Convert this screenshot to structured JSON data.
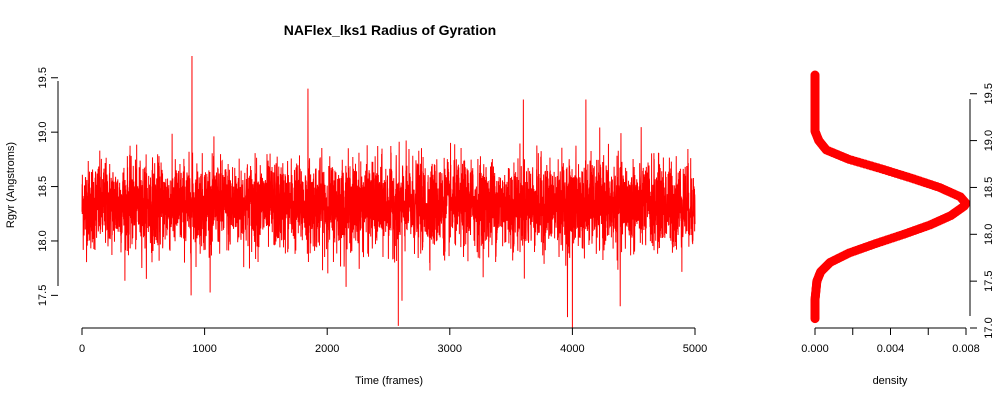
{
  "chart_data": [
    {
      "type": "line",
      "title": "NAFlex_lks1 Radius of Gyration",
      "xlabel": "Time (frames)",
      "ylabel": "Rgyr (Angstroms)",
      "xlim": [
        0,
        5000
      ],
      "ylim": [
        17.2,
        19.7
      ],
      "x_ticks": [
        0,
        1000,
        2000,
        3000,
        4000,
        5000
      ],
      "y_ticks": [
        17.5,
        18.0,
        18.5,
        19.0,
        19.5
      ],
      "x_tick_labels": [
        "0",
        "1000",
        "2000",
        "3000",
        "4000",
        "5000"
      ],
      "y_tick_labels": [
        "17.5",
        "18.0",
        "18.5",
        "19.0",
        "19.5"
      ],
      "grid": false,
      "series": [
        {
          "color": "#ff0000",
          "n_frames": 5000,
          "mean": 18.33,
          "sd": 0.2,
          "min": 17.2,
          "max": 19.7,
          "peaks": [
            {
              "x": 897,
              "y": 19.7
            },
            {
              "x": 1843,
              "y": 19.4
            },
            {
              "x": 3600,
              "y": 19.3
            },
            {
              "x": 4110,
              "y": 19.3
            },
            {
              "x": 2580,
              "y": 17.22
            },
            {
              "x": 4000,
              "y": 17.2
            },
            {
              "x": 3960,
              "y": 17.3
            },
            {
              "x": 4390,
              "y": 17.4
            },
            {
              "x": 890,
              "y": 17.5
            },
            {
              "x": 2610,
              "y": 17.45
            }
          ]
        }
      ]
    },
    {
      "type": "line",
      "title": "",
      "xlabel": "density",
      "ylabel": "",
      "xlim": [
        0,
        0.008
      ],
      "ylim": [
        17.0,
        19.7
      ],
      "x_ticks": [
        0.0,
        0.002,
        0.004,
        0.006,
        0.008
      ],
      "x_tick_labels": [
        "0.000",
        "",
        "0.004",
        "",
        "0.008"
      ],
      "y_ticks": [
        17.0,
        17.5,
        18.0,
        18.5,
        19.0,
        19.5
      ],
      "y_tick_labels": [
        "17.0",
        "17.5",
        "18.0",
        "18.5",
        "19.0",
        "19.5"
      ],
      "y_axis_side": "right",
      "grid": false,
      "series": [
        {
          "color": "#ff0000",
          "marker": "circle",
          "y": [
            17.1,
            17.3,
            17.5,
            17.6,
            17.7,
            17.8,
            17.9,
            18.0,
            18.1,
            18.2,
            18.3,
            18.33,
            18.4,
            18.5,
            18.6,
            18.7,
            18.8,
            18.9,
            19.0,
            19.1,
            19.3,
            19.5,
            19.7
          ],
          "density": [
            0.0,
            0.0,
            0.0001,
            0.0003,
            0.0008,
            0.0018,
            0.0032,
            0.0047,
            0.0061,
            0.0072,
            0.0079,
            0.008,
            0.0077,
            0.0066,
            0.0051,
            0.0035,
            0.0018,
            0.0006,
            0.0002,
            0.0,
            0.0,
            0.0,
            0.0
          ]
        }
      ]
    }
  ]
}
